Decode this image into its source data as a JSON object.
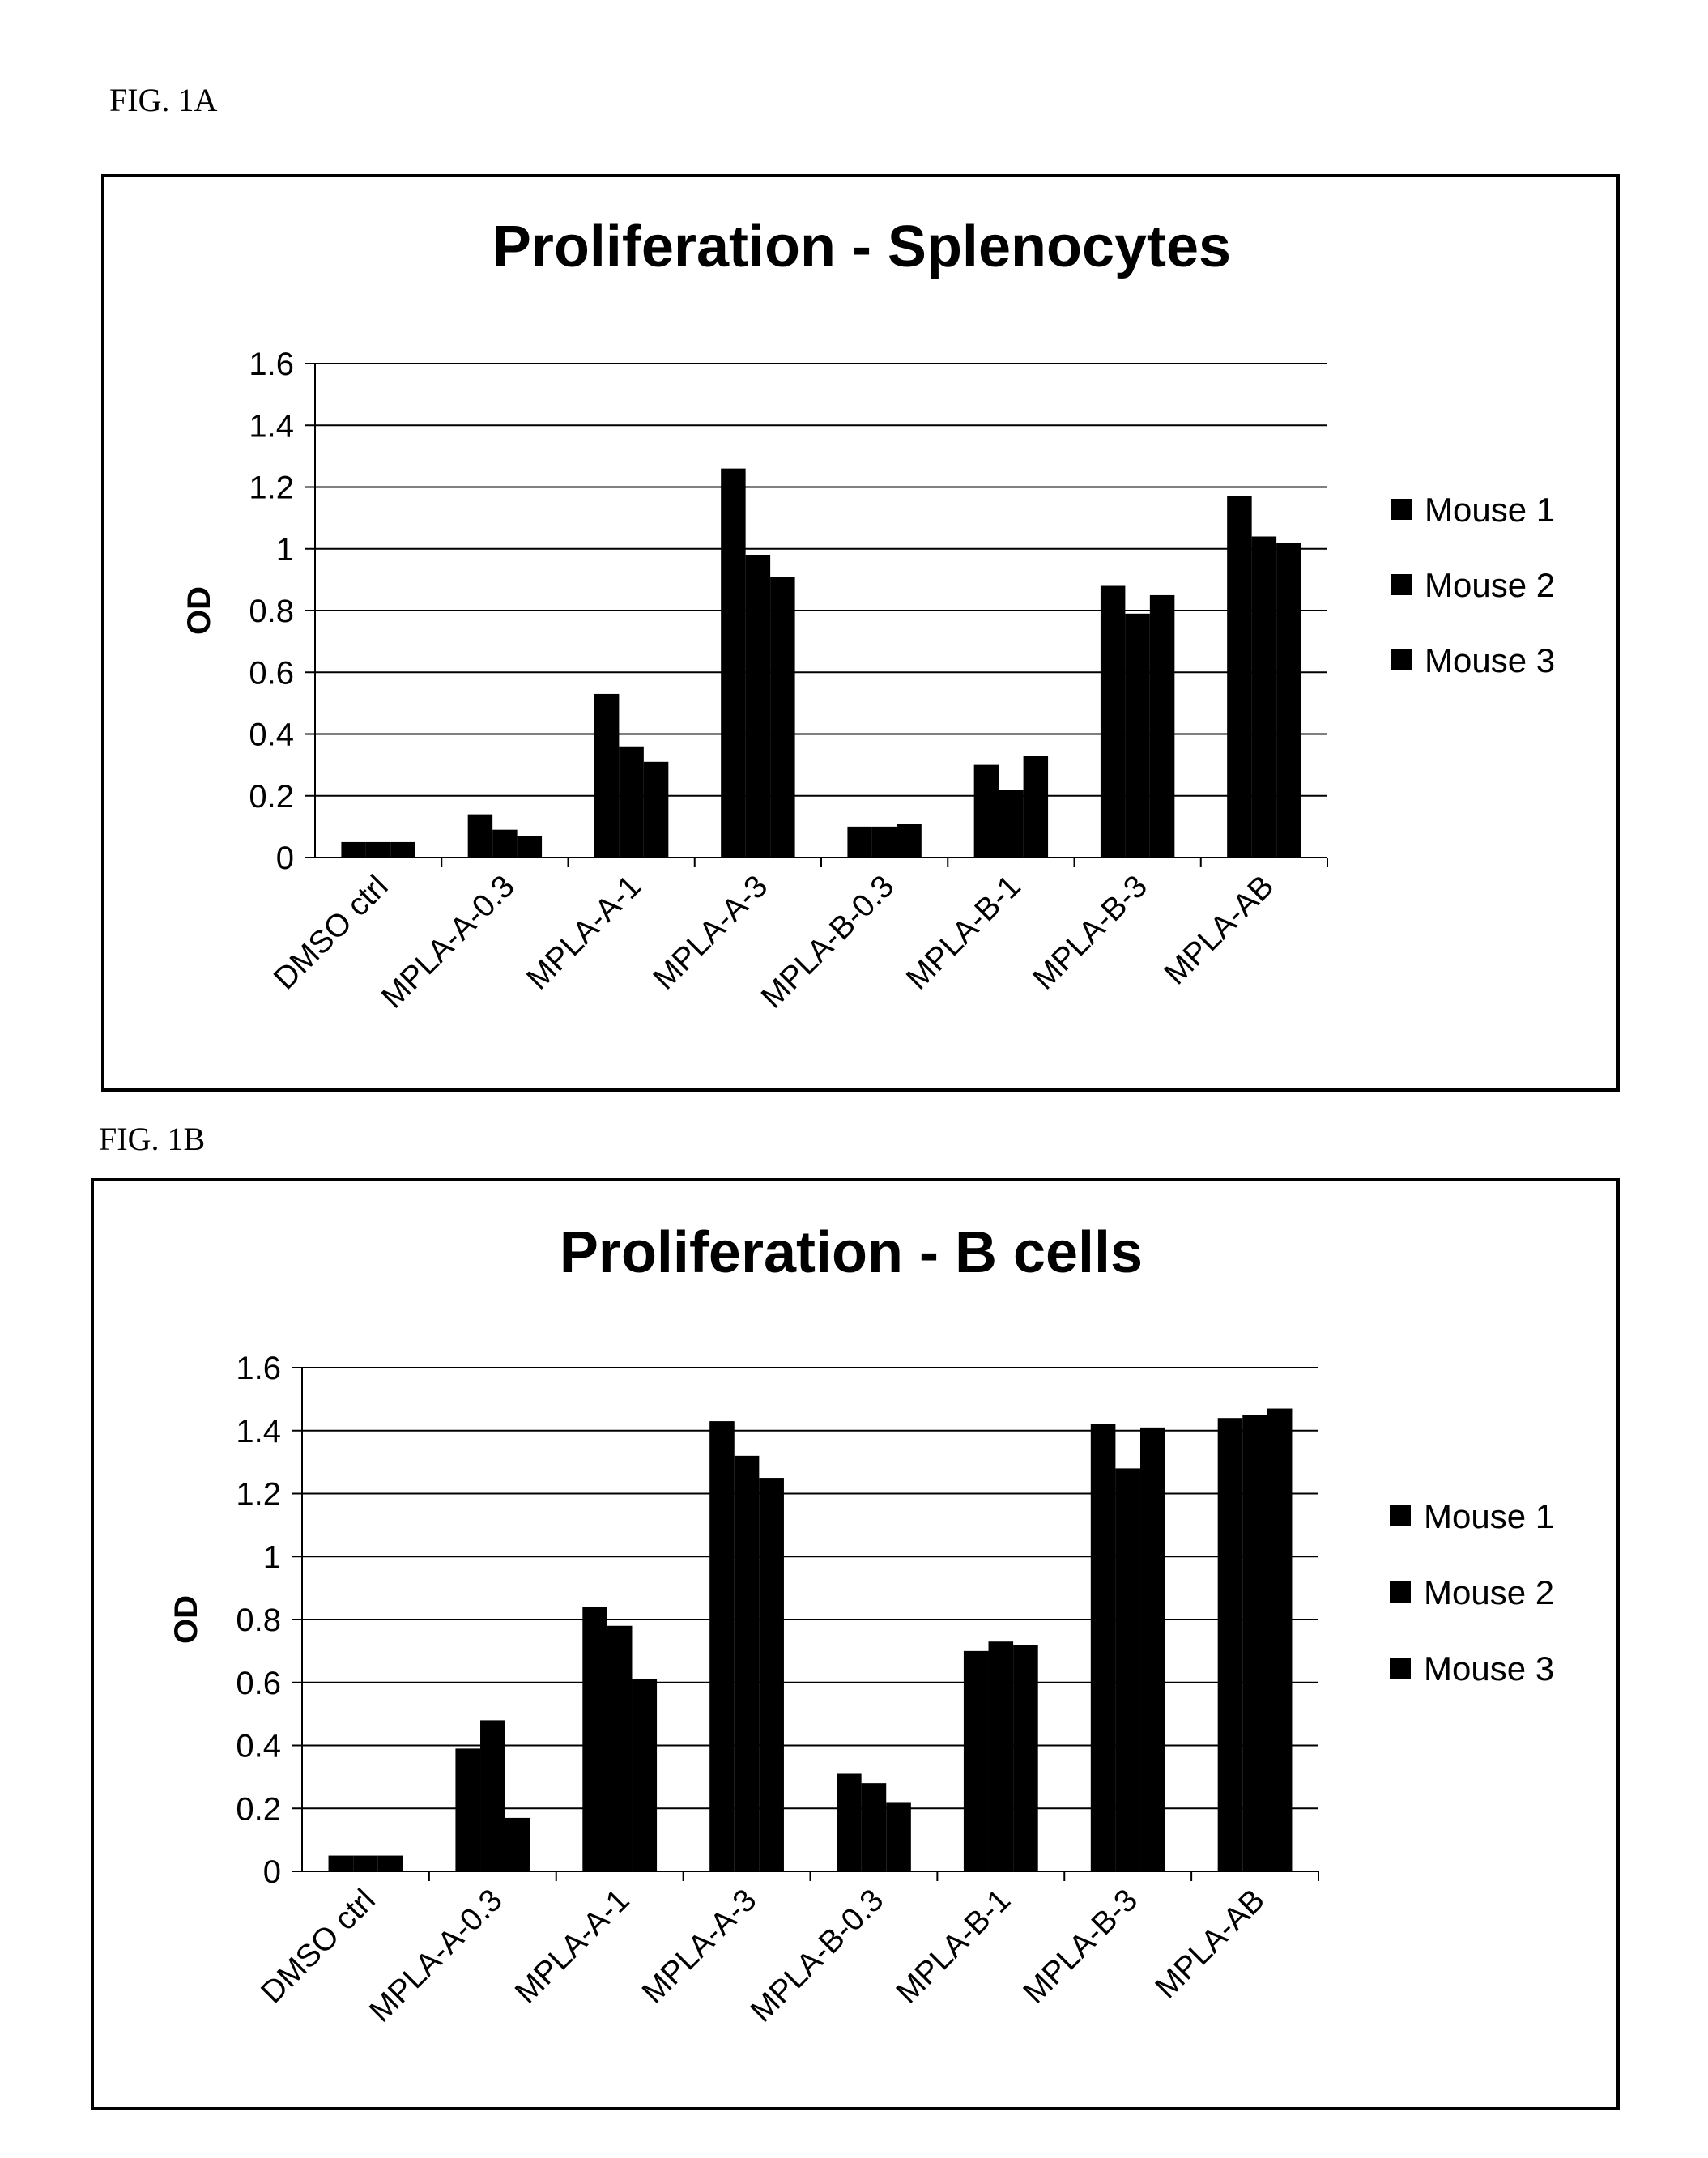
{
  "figures": [
    {
      "label": "FIG. 1A"
    },
    {
      "label": "FIG. 1B"
    }
  ],
  "chart_data": [
    {
      "type": "bar",
      "title": "Proliferation - Splenocytes",
      "xlabel": "",
      "ylabel": "OD",
      "ylim": [
        0,
        1.6
      ],
      "yticks": [
        "0",
        "0.2",
        "0.4",
        "0.6",
        "0.8",
        "1",
        "1.2",
        "1.4",
        "1.6"
      ],
      "grid": true,
      "legend_position": "right",
      "categories": [
        "DMSO ctrl",
        "MPLA-A-0.3",
        "MPLA-A-1",
        "MPLA-A-3",
        "MPLA-B-0.3",
        "MPLA-B-1",
        "MPLA-B-3",
        "MPLA-AB"
      ],
      "series": [
        {
          "name": "Mouse 1",
          "color": "#000000",
          "values": [
            0.05,
            0.14,
            0.53,
            1.26,
            0.1,
            0.3,
            0.88,
            1.17
          ]
        },
        {
          "name": "Mouse 2",
          "color": "#000000",
          "values": [
            0.05,
            0.09,
            0.36,
            0.98,
            0.1,
            0.22,
            0.79,
            1.04
          ]
        },
        {
          "name": "Mouse 3",
          "color": "#000000",
          "values": [
            0.05,
            0.07,
            0.31,
            0.91,
            0.11,
            0.33,
            0.85,
            1.02
          ]
        }
      ]
    },
    {
      "type": "bar",
      "title": "Proliferation - B cells",
      "xlabel": "",
      "ylabel": "OD",
      "ylim": [
        0,
        1.6
      ],
      "yticks": [
        "0",
        "0.2",
        "0.4",
        "0.6",
        "0.8",
        "1",
        "1.2",
        "1.4",
        "1.6"
      ],
      "grid": true,
      "legend_position": "right",
      "categories": [
        "DMSO ctrl",
        "MPLA-A-0.3",
        "MPLA-A-1",
        "MPLA-A-3",
        "MPLA-B-0.3",
        "MPLA-B-1",
        "MPLA-B-3",
        "MPLA-AB"
      ],
      "series": [
        {
          "name": "Mouse 1",
          "color": "#000000",
          "values": [
            0.05,
            0.39,
            0.84,
            1.43,
            0.31,
            0.7,
            1.42,
            1.44
          ]
        },
        {
          "name": "Mouse 2",
          "color": "#000000",
          "values": [
            0.05,
            0.48,
            0.78,
            1.32,
            0.28,
            0.73,
            1.28,
            1.45
          ]
        },
        {
          "name": "Mouse 3",
          "color": "#000000",
          "values": [
            0.05,
            0.17,
            0.61,
            1.25,
            0.22,
            0.72,
            1.41,
            1.47
          ]
        }
      ]
    }
  ]
}
